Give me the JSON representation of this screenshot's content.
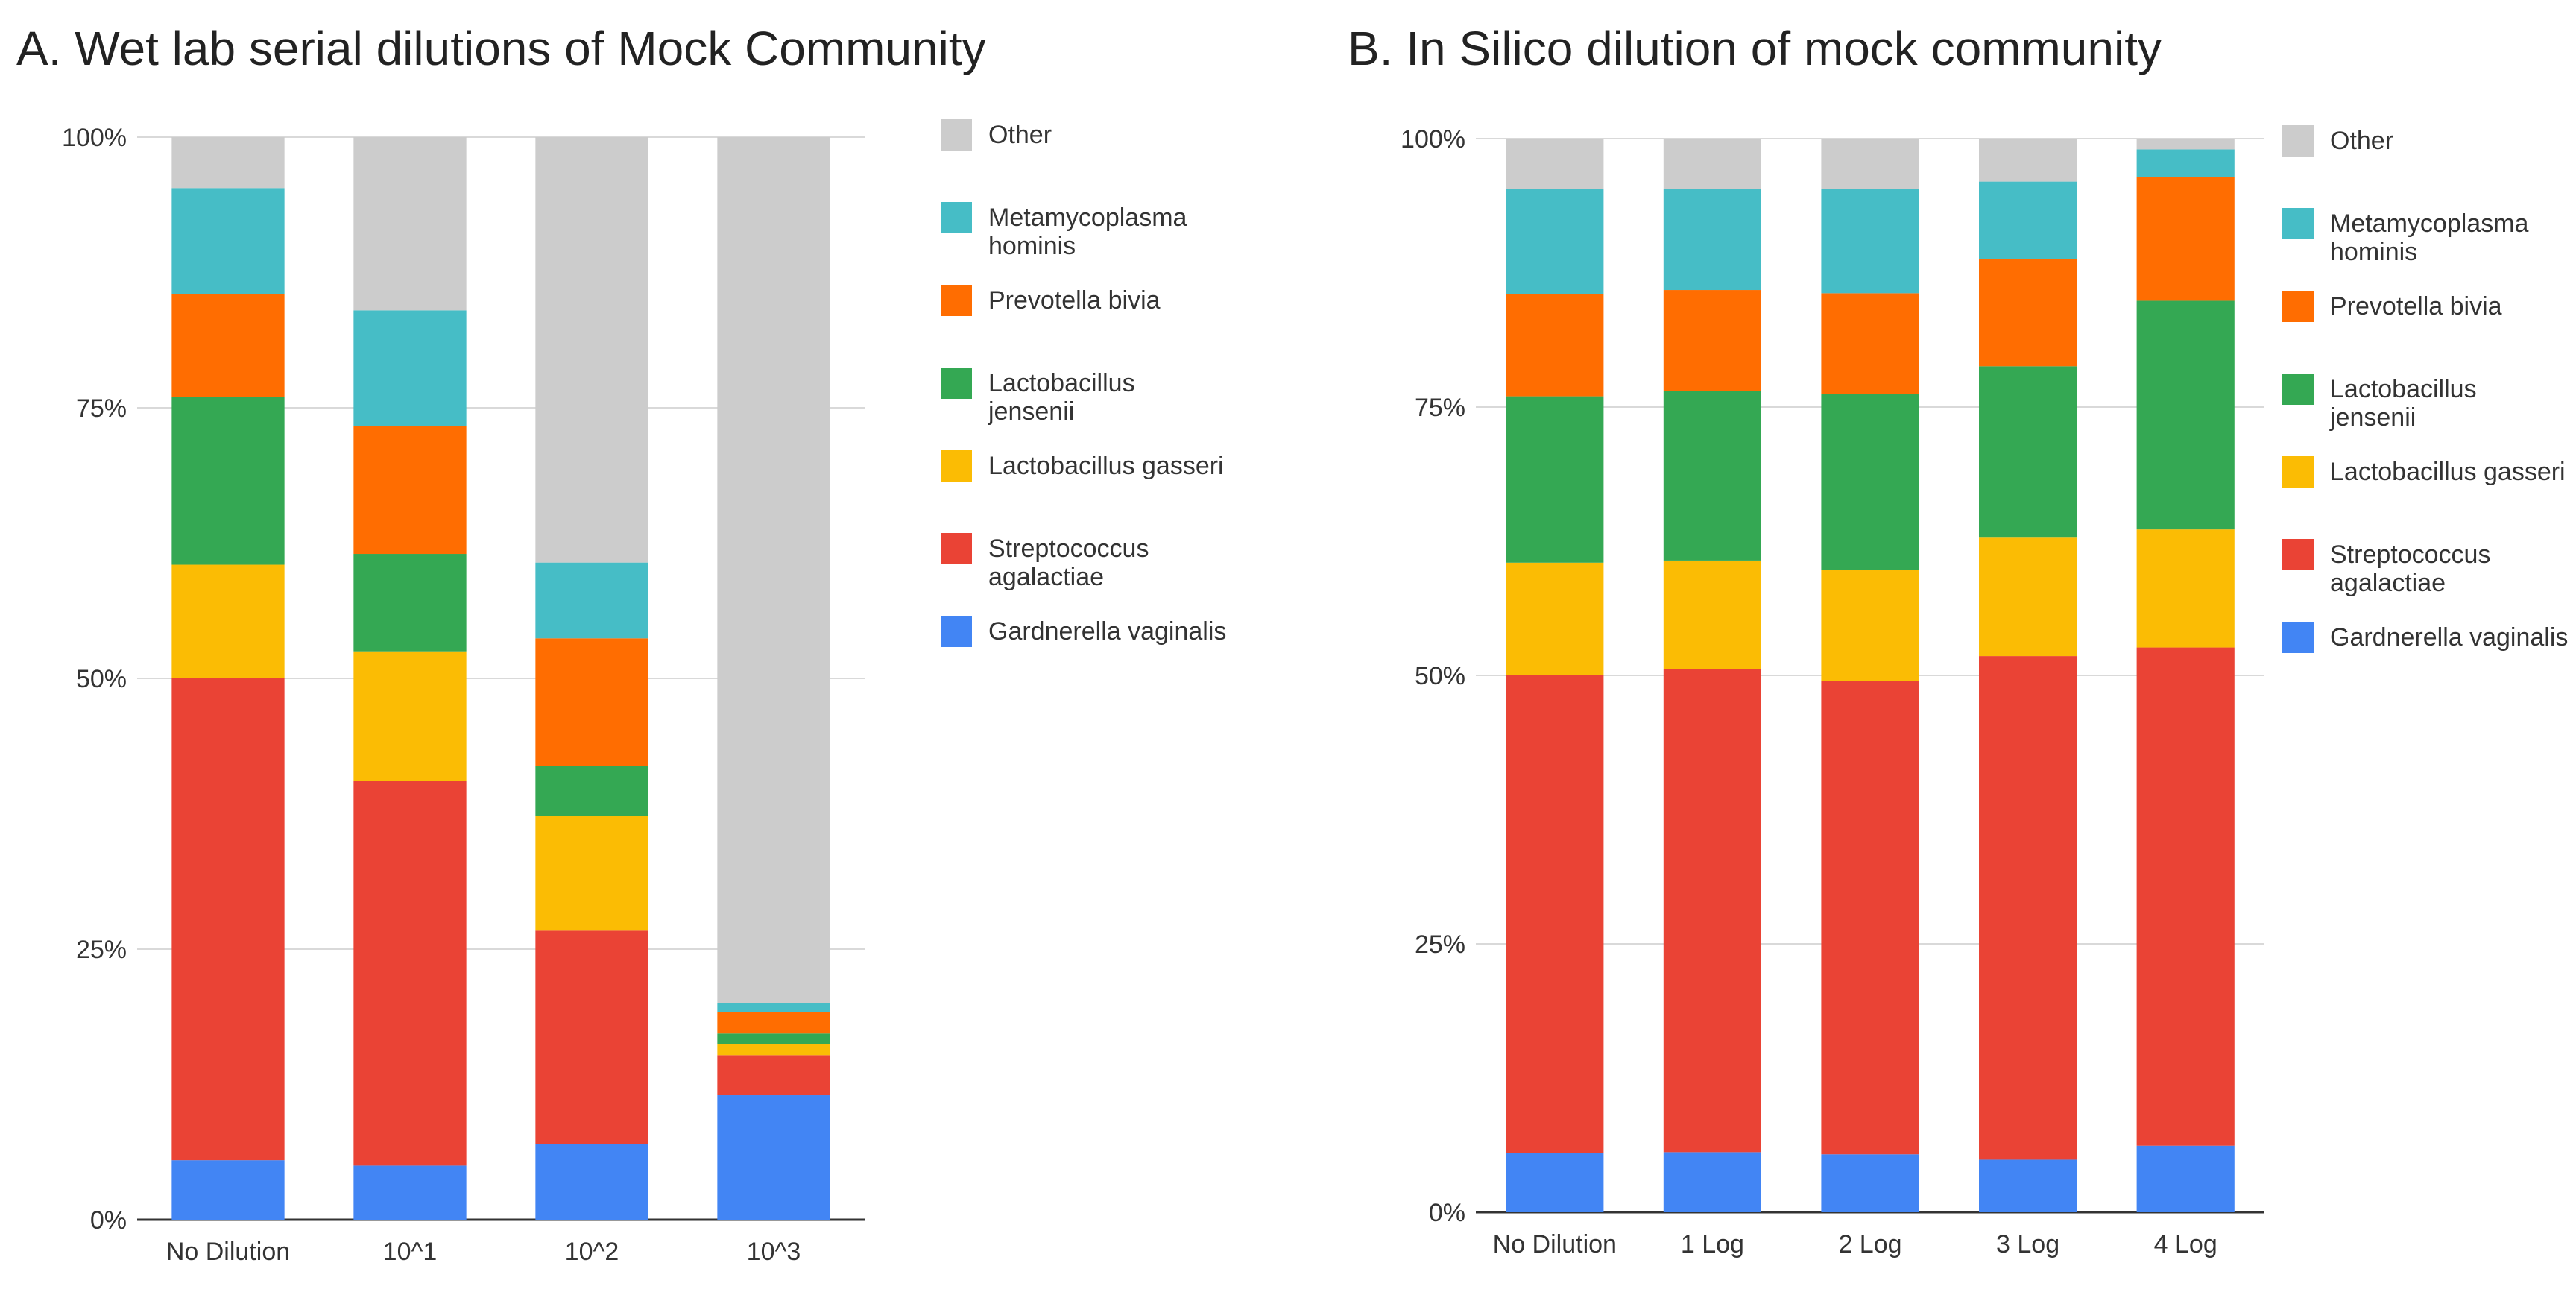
{
  "chart_data": [
    {
      "type": "bar",
      "stacked": true,
      "percent": true,
      "title": "A. Wet lab serial dilutions of Mock Community",
      "xlabel": "",
      "ylabel": "",
      "ylim": [
        0,
        100
      ],
      "yticks": [
        "0%",
        "25%",
        "50%",
        "75%",
        "100%"
      ],
      "grid": true,
      "legend_position": "right",
      "categories": [
        "No Dilution",
        "10^1",
        "10^2",
        "10^3"
      ],
      "series": [
        {
          "name": "Gardnerella vaginalis",
          "color": "#4285F4",
          "values": [
            5.5,
            5.0,
            7.0,
            11.5
          ]
        },
        {
          "name": "Streptococcus agalactiae",
          "color": "#EA4335",
          "values": [
            44.5,
            35.5,
            19.7,
            3.7
          ]
        },
        {
          "name": "Lactobacillus gasseri",
          "color": "#FBBC04",
          "values": [
            10.5,
            12.0,
            10.6,
            1.0
          ]
        },
        {
          "name": "Lactobacillus jensenii",
          "color": "#34A853",
          "values": [
            15.5,
            9.0,
            4.6,
            1.0
          ]
        },
        {
          "name": "Prevotella bivia",
          "color": "#FF6D01",
          "values": [
            9.5,
            11.8,
            11.8,
            2.0
          ]
        },
        {
          "name": "Metamycoplasma hominis",
          "color": "#46BDC6",
          "values": [
            9.8,
            10.7,
            7.0,
            0.8
          ]
        },
        {
          "name": "Other",
          "color": "#CCCCCC",
          "values": [
            4.7,
            16.0,
            39.3,
            80.0
          ]
        }
      ]
    },
    {
      "type": "bar",
      "stacked": true,
      "percent": true,
      "title": "B. In Silico dilution of mock community",
      "xlabel": "",
      "ylabel": "",
      "ylim": [
        0,
        100
      ],
      "yticks": [
        "0%",
        "25%",
        "50%",
        "75%",
        "100%"
      ],
      "grid": true,
      "legend_position": "right",
      "categories": [
        "No Dilution",
        "1 Log",
        "2 Log",
        "3 Log",
        "4 Log"
      ],
      "series": [
        {
          "name": "Gardnerella vaginalis",
          "color": "#4285F4",
          "values": [
            5.5,
            5.6,
            5.4,
            4.9,
            6.2
          ]
        },
        {
          "name": "Streptococcus agalactiae",
          "color": "#EA4335",
          "values": [
            44.5,
            45.0,
            44.1,
            46.9,
            46.4
          ]
        },
        {
          "name": "Lactobacillus gasseri",
          "color": "#FBBC04",
          "values": [
            10.5,
            10.1,
            10.3,
            11.1,
            11.0
          ]
        },
        {
          "name": "Lactobacillus jensenii",
          "color": "#34A853",
          "values": [
            15.5,
            15.8,
            16.4,
            15.9,
            21.3
          ]
        },
        {
          "name": "Prevotella bivia",
          "color": "#FF6D01",
          "values": [
            9.5,
            9.4,
            9.4,
            10.0,
            11.5
          ]
        },
        {
          "name": "Metamycoplasma hominis",
          "color": "#46BDC6",
          "values": [
            9.8,
            9.4,
            9.7,
            7.2,
            2.6
          ]
        },
        {
          "name": "Other",
          "color": "#CCCCCC",
          "values": [
            4.7,
            4.7,
            4.7,
            4.0,
            1.0
          ]
        }
      ]
    }
  ],
  "legend_items": [
    {
      "label": "Other",
      "color": "#CCCCCC"
    },
    {
      "label": "Metamycoplasma hominis",
      "color": "#46BDC6"
    },
    {
      "label": "Prevotella bivia",
      "color": "#FF6D01"
    },
    {
      "label": "Lactobacillus jensenii",
      "color": "#34A853"
    },
    {
      "label": "Lactobacillus gasseri",
      "color": "#FBBC04"
    },
    {
      "label": "Streptococcus agalactiae",
      "color": "#EA4335"
    },
    {
      "label": "Gardnerella vaginalis",
      "color": "#4285F4"
    }
  ]
}
